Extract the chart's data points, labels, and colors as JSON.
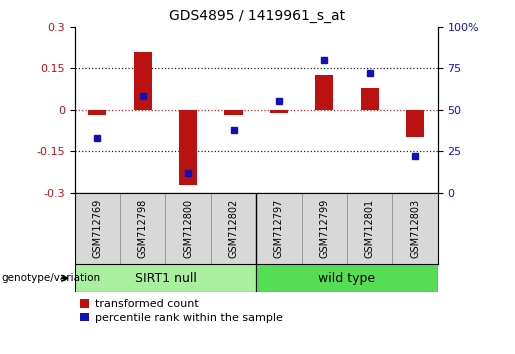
{
  "title": "GDS4895 / 1419961_s_at",
  "samples": [
    "GSM712769",
    "GSM712798",
    "GSM712800",
    "GSM712802",
    "GSM712797",
    "GSM712799",
    "GSM712801",
    "GSM712803"
  ],
  "transformed_count": [
    -0.02,
    0.21,
    -0.27,
    -0.02,
    -0.01,
    0.125,
    0.08,
    -0.1
  ],
  "percentile_rank": [
    33,
    58,
    12,
    38,
    55,
    80,
    72,
    22
  ],
  "ylim_left": [
    -0.3,
    0.3
  ],
  "ylim_right": [
    0,
    100
  ],
  "yticks_left": [
    -0.3,
    -0.15,
    0.0,
    0.15,
    0.3
  ],
  "yticks_right": [
    0,
    25,
    50,
    75,
    100
  ],
  "bar_color": "#bb1111",
  "dot_color": "#1111bb",
  "zero_line_color": "#cc2222",
  "dotted_line_color": "#222222",
  "sirt1_color": "#aaeea0",
  "wildtype_color": "#55dd55",
  "label_bar": "transformed count",
  "label_dot": "percentile rank within the sample",
  "genotype_label": "genotype/variation",
  "sirt1_label": "SIRT1 null",
  "wildtype_label": "wild type",
  "n_sirt1": 4,
  "n_wildtype": 4
}
